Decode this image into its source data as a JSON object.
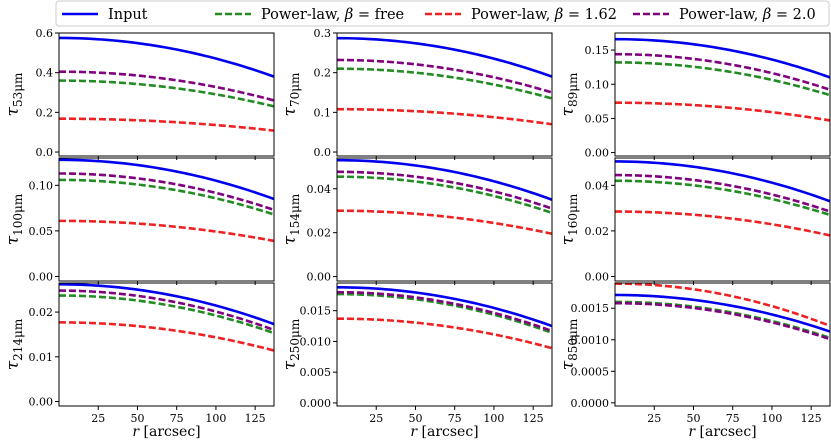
{
  "chart_data": {
    "type": "line",
    "legend": {
      "placement": "top",
      "entries": [
        {
          "key": "input",
          "prefix": "Input",
          "beta": "",
          "color": "#0000ee",
          "dashed": false
        },
        {
          "key": "free",
          "prefix": "Power-law, ",
          "beta": " = free",
          "color": "#228b22",
          "dashed": true
        },
        {
          "key": "b162",
          "prefix": "Power-law, ",
          "beta": " = 1.62",
          "color": "#ee2222",
          "dashed": true
        },
        {
          "key": "b20",
          "prefix": "Power-law, ",
          "beta": " = 2.0",
          "color": "#800080",
          "dashed": true
        }
      ]
    },
    "xlabel_symbol": "r",
    "xlabel_unit": "[arcsec]",
    "xlim": [
      0,
      137
    ],
    "xticks": [
      25,
      50,
      75,
      100,
      125
    ],
    "series_order": [
      "free",
      "b162",
      "b20",
      "input"
    ],
    "panels": [
      {
        "wavelength": "53",
        "ylim": [
          -0.02,
          0.6
        ],
        "yticks": [
          "0.0",
          "0.2",
          "0.4",
          "0.6"
        ],
        "ytick_values": [
          0,
          0.2,
          0.4,
          0.6
        ],
        "series": {
          "input": [
            0.575,
            0.38
          ],
          "free": [
            0.36,
            0.23
          ],
          "b162": [
            0.168,
            0.108
          ],
          "b20": [
            0.405,
            0.26
          ]
        }
      },
      {
        "wavelength": "70",
        "ylim": [
          -0.01,
          0.3
        ],
        "yticks": [
          "0.0",
          "0.1",
          "0.2",
          "0.3"
        ],
        "ytick_values": [
          0,
          0.1,
          0.2,
          0.3
        ],
        "series": {
          "input": [
            0.287,
            0.19
          ],
          "free": [
            0.21,
            0.135
          ],
          "b162": [
            0.108,
            0.07
          ],
          "b20": [
            0.232,
            0.15
          ]
        }
      },
      {
        "wavelength": "89",
        "ylim": [
          -0.005,
          0.175
        ],
        "yticks": [
          "0.00",
          "0.05",
          "0.10",
          "0.15"
        ],
        "ytick_values": [
          0,
          0.05,
          0.1,
          0.15
        ],
        "series": {
          "input": [
            0.166,
            0.11
          ],
          "free": [
            0.132,
            0.084
          ],
          "b162": [
            0.073,
            0.047
          ],
          "b20": [
            0.144,
            0.092
          ]
        }
      },
      {
        "wavelength": "100",
        "ylim": [
          -0.005,
          0.13
        ],
        "yticks": [
          "0.00",
          "0.05",
          "0.10"
        ],
        "ytick_values": [
          0,
          0.05,
          0.1
        ],
        "series": {
          "input": [
            0.128,
            0.085
          ],
          "free": [
            0.106,
            0.068
          ],
          "b162": [
            0.061,
            0.039
          ],
          "b20": [
            0.113,
            0.073
          ]
        }
      },
      {
        "wavelength": "154",
        "ylim": [
          -0.002,
          0.054
        ],
        "yticks": [
          "0.00",
          "0.02",
          "0.04"
        ],
        "ytick_values": [
          0,
          0.02,
          0.04
        ],
        "series": {
          "input": [
            0.053,
            0.035
          ],
          "free": [
            0.0455,
            0.029
          ],
          "b162": [
            0.03,
            0.0195
          ],
          "b20": [
            0.0477,
            0.031
          ]
        }
      },
      {
        "wavelength": "160",
        "ylim": [
          -0.002,
          0.052
        ],
        "yticks": [
          "0.00",
          "0.02",
          "0.04"
        ],
        "ytick_values": [
          0,
          0.02,
          0.04
        ],
        "series": {
          "input": [
            0.0505,
            0.033
          ],
          "free": [
            0.042,
            0.027
          ],
          "b162": [
            0.0285,
            0.018
          ],
          "b20": [
            0.0445,
            0.0285
          ]
        }
      },
      {
        "wavelength": "214",
        "ylim": [
          -0.001,
          0.0265
        ],
        "yticks": [
          "0.00",
          "0.01",
          "0.02"
        ],
        "ytick_values": [
          0,
          0.01,
          0.02
        ],
        "series": {
          "input": [
            0.0262,
            0.0173
          ],
          "free": [
            0.0237,
            0.0153
          ],
          "b162": [
            0.0177,
            0.0114
          ],
          "b20": [
            0.0248,
            0.016
          ]
        }
      },
      {
        "wavelength": "250",
        "ylim": [
          -0.0005,
          0.0195
        ],
        "yticks": [
          "0.000",
          "0.005",
          "0.010",
          "0.015"
        ],
        "ytick_values": [
          0,
          0.005,
          0.01,
          0.015
        ],
        "series": {
          "input": [
            0.0188,
            0.0125
          ],
          "free": [
            0.0177,
            0.0114
          ],
          "b162": [
            0.0137,
            0.0089
          ],
          "b20": [
            0.018,
            0.0117
          ]
        }
      },
      {
        "wavelength": "850",
        "ylim": [
          -5e-05,
          0.0019
        ],
        "yticks": [
          "0.0000",
          "0.0005",
          "0.0010",
          "0.0015"
        ],
        "ytick_values": [
          0,
          0.0005,
          0.001,
          0.0015
        ],
        "series": {
          "input": [
            0.00171,
            0.00113
          ],
          "free": [
            0.0016,
            0.00103
          ],
          "b162": [
            0.00189,
            0.00122
          ],
          "b20": [
            0.00158,
            0.00101
          ]
        }
      }
    ]
  }
}
